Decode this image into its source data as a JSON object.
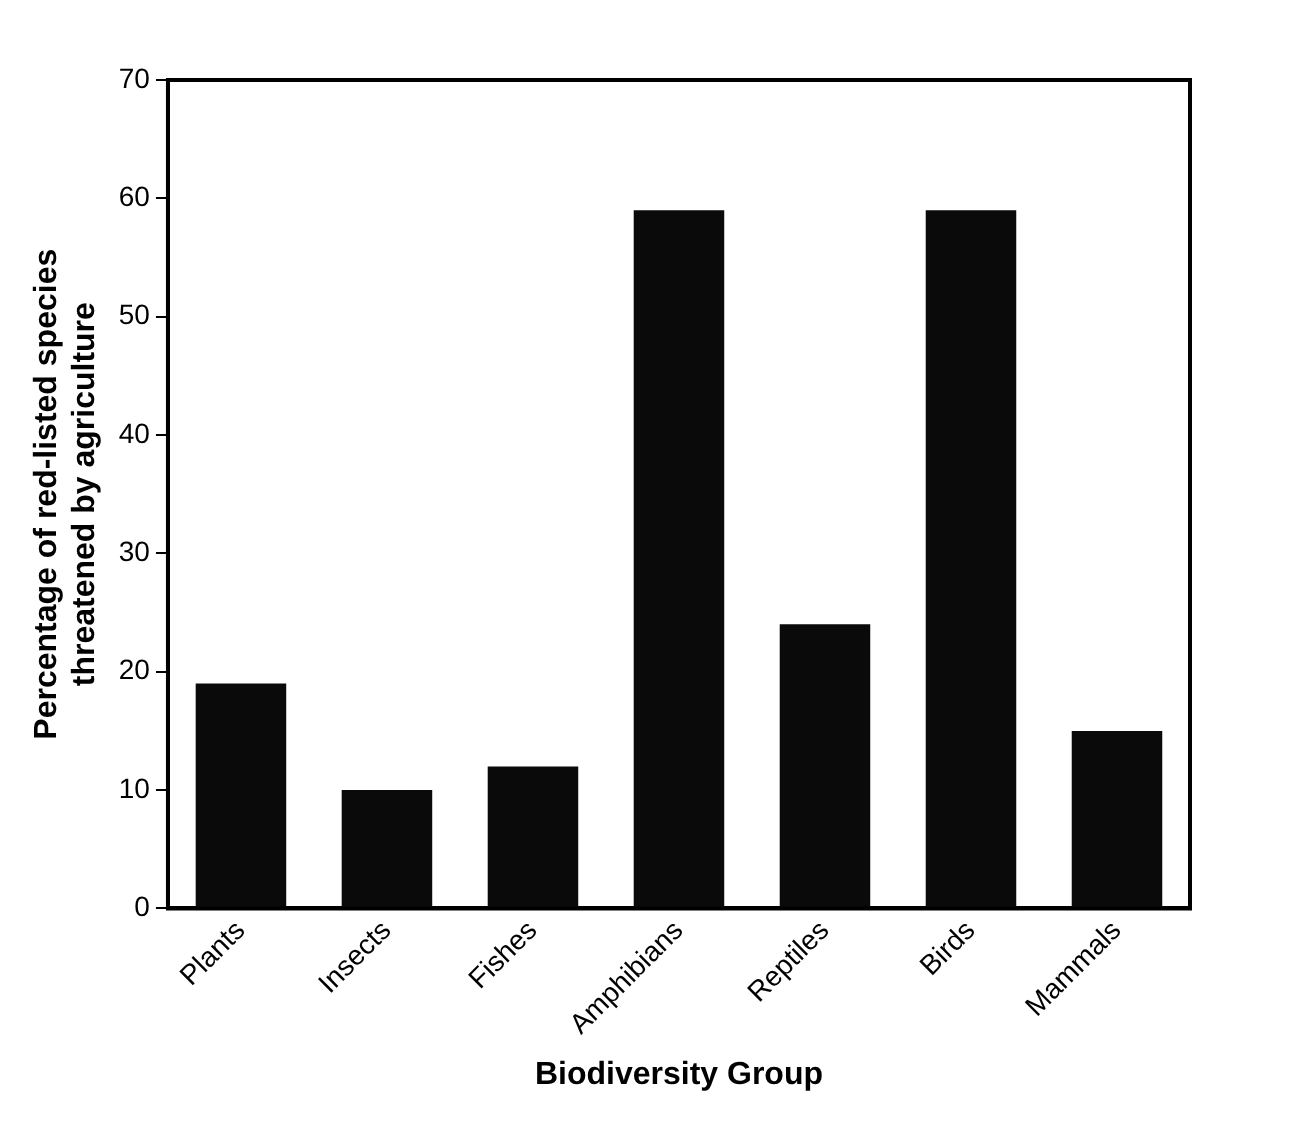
{
  "chart_data": {
    "type": "bar",
    "xlabel": "Biodiversity Group",
    "ylabel": "Percentage of red-listed species\nthreatened by agriculture",
    "categories": [
      "Plants",
      "Insects",
      "Fishes",
      "Amphibians",
      "Reptiles",
      "Birds",
      "Mammals"
    ],
    "values": [
      19,
      10,
      12,
      59,
      24,
      59,
      15
    ],
    "color": "#0a0a0a",
    "ylim": [
      0,
      70
    ],
    "yticks": [
      0,
      10,
      20,
      30,
      40,
      50,
      60,
      70
    ],
    "grid": false
  }
}
